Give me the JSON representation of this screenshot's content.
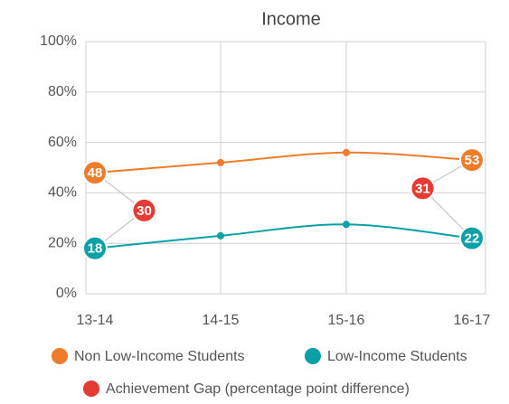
{
  "chart_data": {
    "type": "line",
    "title": "Income",
    "categories": [
      "13-14",
      "14-15",
      "15-16",
      "16-17"
    ],
    "series": [
      {
        "name": "Non Low-Income Students",
        "color": "#ee7d2b",
        "values": [
          48,
          52,
          56,
          53
        ]
      },
      {
        "name": "Low-Income Students",
        "color": "#0aa0a8",
        "values": [
          18,
          23,
          27.5,
          22
        ]
      },
      {
        "name": "Achievement Gap (percentage point difference)",
        "color": "#e53b33",
        "values": [
          30,
          null,
          null,
          31
        ]
      }
    ],
    "ylim": [
      0,
      100
    ],
    "yticks": [
      {
        "value": 0,
        "label": "0%"
      },
      {
        "value": 20,
        "label": "20%"
      },
      {
        "value": 40,
        "label": "40%"
      },
      {
        "value": 60,
        "label": "60%"
      },
      {
        "value": 80,
        "label": "80%"
      },
      {
        "value": 100,
        "label": "100%"
      }
    ],
    "grid": true
  }
}
